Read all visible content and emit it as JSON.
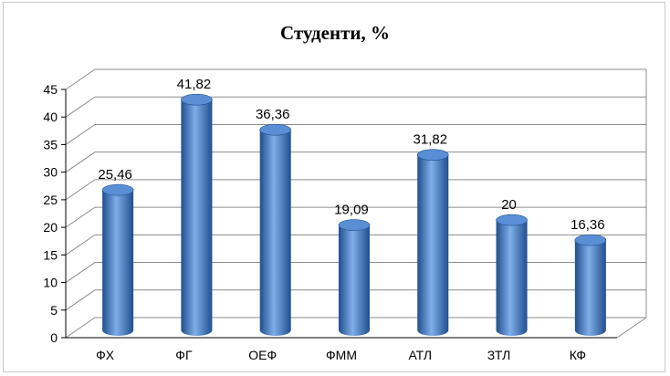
{
  "chart_data": {
    "type": "bar",
    "title": "Студенти, %",
    "categories": [
      "ФХ",
      "ФГ",
      "ОЕФ",
      "ФММ",
      "АТЛ",
      "ЗТЛ",
      "КФ"
    ],
    "values": [
      25.46,
      41.82,
      36.36,
      19.09,
      31.82,
      20,
      16.36
    ],
    "data_labels": [
      "25,46",
      "41,82",
      "36,36",
      "19,09",
      "31,82",
      "20",
      "16,36"
    ],
    "ylim": [
      0,
      45
    ],
    "yticks": [
      "0",
      "5",
      "10",
      "15",
      "20",
      "25",
      "30",
      "35",
      "40",
      "45"
    ],
    "grid": true,
    "legend": "none",
    "bar_shape": "cylinder",
    "colors": {
      "bar_dark": "#1f4f8f",
      "bar_mid": "#3f78c4",
      "bar_light": "#7faee8",
      "bar_top": "#5a8fd6",
      "grid": "#8c8c8c",
      "axis": "#000000"
    }
  }
}
